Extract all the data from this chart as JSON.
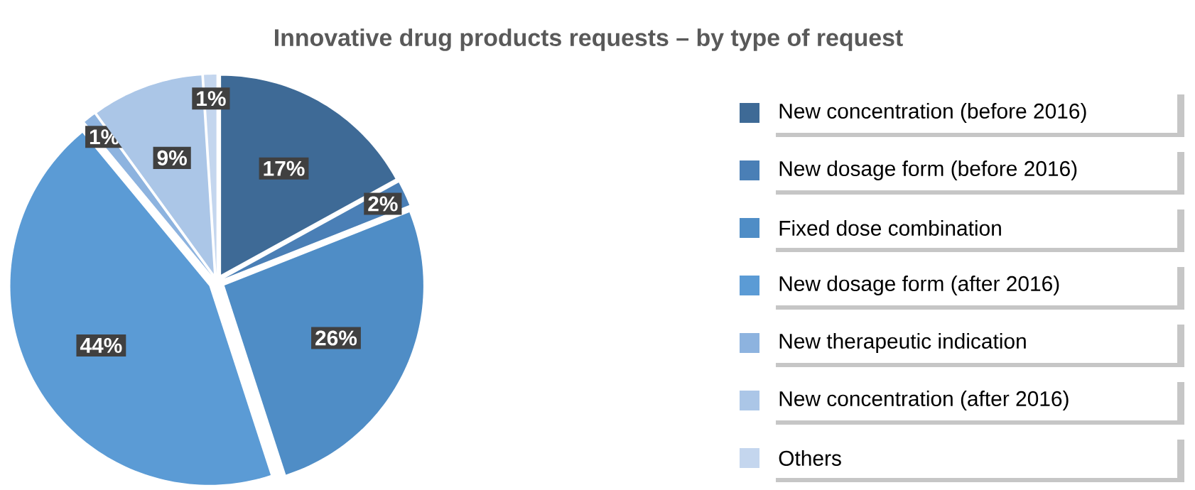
{
  "chart_data": {
    "type": "pie",
    "title": "Innovative drug products requests – by type of request",
    "categories": [
      "New concentration (before 2016)",
      "New dosage form (before 2016)",
      "Fixed dose combination",
      "New dosage form (after 2016)",
      "New therapeutic indication",
      "New concentration (after 2016)",
      "Others"
    ],
    "values": [
      17,
      2,
      26,
      44,
      1,
      9,
      1
    ],
    "value_labels": [
      "17%",
      "2%",
      "26%",
      "44%",
      "1%",
      "9%",
      "1%"
    ],
    "colors": [
      "#3e6a96",
      "#4a7fb6",
      "#4f8dc6",
      "#5b9bd5",
      "#8db3df",
      "#abc6e7",
      "#c4d6ee"
    ],
    "legend": "right"
  }
}
